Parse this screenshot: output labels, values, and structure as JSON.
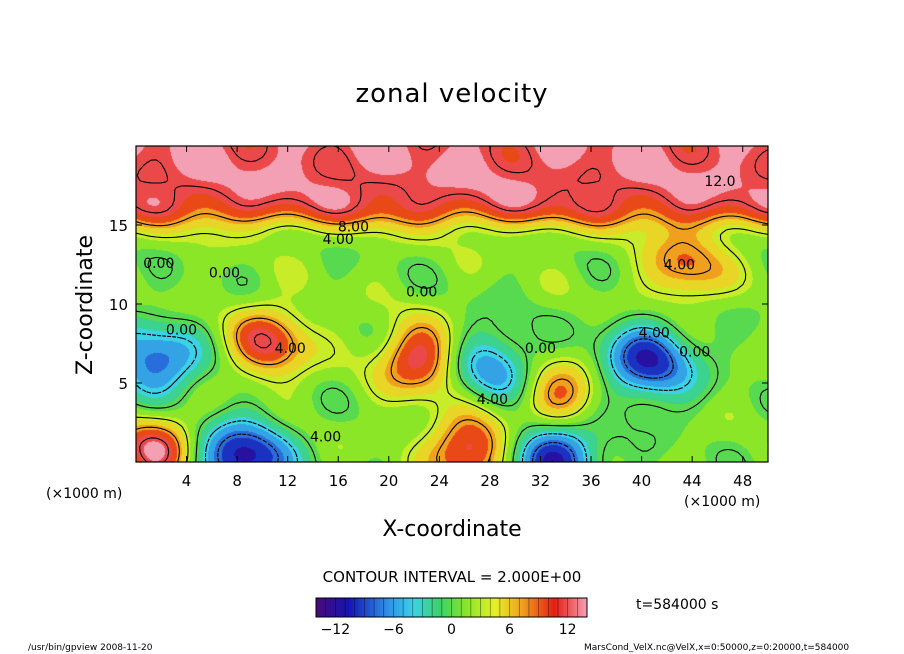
{
  "chart_data": {
    "type": "heatmap",
    "title": "zonal velocity",
    "xlabel": "X-coordinate",
    "ylabel": "Z-coordinate",
    "x_unit_left": "(×1000 m)",
    "x_unit_right": "(×1000 m)",
    "xlim": [
      0,
      50
    ],
    "ylim": [
      0,
      20
    ],
    "x_ticks": [
      4,
      8,
      12,
      16,
      20,
      24,
      28,
      32,
      36,
      40,
      44,
      48
    ],
    "x_tick_labels": [
      "4",
      "8",
      "12",
      "16",
      "20",
      "24",
      "28",
      "32",
      "36",
      "40",
      "44",
      "48"
    ],
    "y_ticks": [
      5,
      10,
      15
    ],
    "y_tick_labels": [
      "5",
      "10",
      "15"
    ],
    "contour_interval_text": "CONTOUR INTERVAL = 2.000E+00",
    "time_text": "t=584000 s",
    "colorbar": {
      "range": [
        -14,
        14
      ],
      "ticks": [
        -12,
        -6,
        0,
        6,
        12
      ],
      "tick_labels": [
        "−12",
        "−6",
        "0",
        "6",
        "12"
      ]
    },
    "contour_labels": [
      {
        "text": "12.0",
        "x": 46.2,
        "z": 17.8
      },
      {
        "text": "8.00",
        "x": 17.2,
        "z": 14.9
      },
      {
        "text": "4.00",
        "x": 16.0,
        "z": 14.1
      },
      {
        "text": "4.00",
        "x": 43.0,
        "z": 12.5
      },
      {
        "text": "0.00",
        "x": 7.0,
        "z": 12.0
      },
      {
        "text": "0.00",
        "x": 1.8,
        "z": 12.6
      },
      {
        "text": "0.00",
        "x": 22.6,
        "z": 10.8
      },
      {
        "text": "0.00",
        "x": 3.6,
        "z": 8.4
      },
      {
        "text": "4.00",
        "x": 12.2,
        "z": 7.2
      },
      {
        "text": "4.00",
        "x": 41.0,
        "z": 8.2
      },
      {
        "text": "0.00",
        "x": 44.2,
        "z": 7.0
      },
      {
        "text": "0.00",
        "x": 32.0,
        "z": 7.2
      },
      {
        "text": "4.00",
        "x": 28.2,
        "z": 4.0
      },
      {
        "text": "4.00",
        "x": 15.0,
        "z": 1.6
      }
    ],
    "features": [
      {
        "kind": "jet",
        "x": [
          0,
          50
        ],
        "z": [
          15,
          20
        ],
        "value": 13
      },
      {
        "kind": "max",
        "x": 10.5,
        "z": 7.5,
        "value": 10
      },
      {
        "kind": "max",
        "x": 22.5,
        "z": 6.5,
        "value": 11
      },
      {
        "kind": "max",
        "x": 33.5,
        "z": 4.0,
        "value": 9
      },
      {
        "kind": "max",
        "x": 43.5,
        "z": 12.3,
        "value": 8
      },
      {
        "kind": "min",
        "x": 1.5,
        "z": 6.3,
        "value": -10
      },
      {
        "kind": "min",
        "x": 40.5,
        "z": 6.3,
        "value": -12
      },
      {
        "kind": "min",
        "x": 28.0,
        "z": 6.0,
        "value": -8
      },
      {
        "kind": "min",
        "x": 8.5,
        "z": 0.2,
        "value": -14
      },
      {
        "kind": "min",
        "x": 33.0,
        "z": 0.5,
        "value": -13
      },
      {
        "kind": "max",
        "x": 26.5,
        "z": 0.8,
        "value": 12
      },
      {
        "kind": "max",
        "x": 1.5,
        "z": 0.8,
        "value": 11
      }
    ]
  },
  "footer": {
    "left": "/usr/bin/gpview  2008-11-20",
    "right": "MarsCond_VelX.nc@VelX,x=0:50000,z=0:20000,t=584000"
  }
}
